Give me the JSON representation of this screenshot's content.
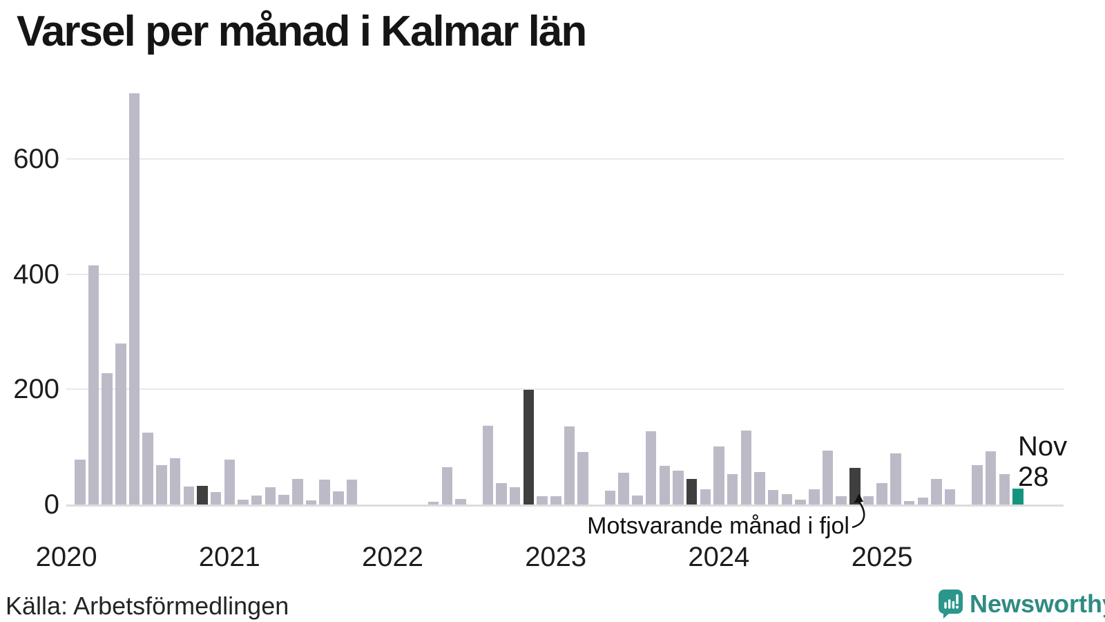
{
  "title": "Varsel per månad i Kalmar län",
  "footer": {
    "source": "Källa: Arbetsförmedlingen"
  },
  "brand": {
    "name": "Newsworthy",
    "text_color": "#2e8b83",
    "icon_color": "#2b968b"
  },
  "annotation": {
    "text": "Motsvarande månad i fjol",
    "target": "2024-11"
  },
  "highlight_label": {
    "month": "Nov",
    "value": "28"
  },
  "colors": {
    "bar": "#bdbac8",
    "bar_dark": "#3f3f3f",
    "bar_highlight": "#14947f",
    "gridline": "#e9e8ea",
    "axis_line": "#dcdcdf",
    "text": "#1d1d1d"
  },
  "chart_data": {
    "type": "bar",
    "title": "Varsel per månad i Kalmar län",
    "xlabel": "",
    "ylabel": "",
    "ylim": [
      0,
      745
    ],
    "yticks": [
      0,
      200,
      400,
      600
    ],
    "xticks": [
      "2020",
      "2021",
      "2022",
      "2023",
      "2024",
      "2025"
    ],
    "grid": "horizontal",
    "legend": "none",
    "categories": [
      "2020-02",
      "2020-03",
      "2020-04",
      "2020-05",
      "2020-06",
      "2020-07",
      "2020-08",
      "2020-09",
      "2020-10",
      "2020-11",
      "2020-12",
      "2021-01",
      "2021-02",
      "2021-03",
      "2021-04",
      "2021-05",
      "2021-06",
      "2021-07",
      "2021-08",
      "2021-09",
      "2021-10",
      "2021-11",
      "2021-12",
      "2022-01",
      "2022-02",
      "2022-03",
      "2022-04",
      "2022-05",
      "2022-06",
      "2022-07",
      "2022-08",
      "2022-09",
      "2022-10",
      "2022-11",
      "2022-12",
      "2023-01",
      "2023-02",
      "2023-03",
      "2023-04",
      "2023-05",
      "2023-06",
      "2023-07",
      "2023-08",
      "2023-09",
      "2023-10",
      "2023-11",
      "2023-12",
      "2024-01",
      "2024-02",
      "2024-03",
      "2024-04",
      "2024-05",
      "2024-06",
      "2024-07",
      "2024-08",
      "2024-09",
      "2024-10",
      "2024-11",
      "2024-12",
      "2025-01",
      "2025-02",
      "2025-03",
      "2025-04",
      "2025-05",
      "2025-06",
      "2025-07",
      "2025-08",
      "2025-09",
      "2025-10",
      "2025-11"
    ],
    "values": [
      78,
      415,
      228,
      280,
      715,
      125,
      69,
      80,
      31,
      33,
      22,
      78,
      8,
      16,
      30,
      17,
      44,
      7,
      43,
      23,
      43,
      0,
      0,
      0,
      0,
      0,
      5,
      65,
      10,
      0,
      137,
      37,
      30,
      200,
      15,
      15,
      136,
      91,
      0,
      24,
      55,
      16,
      127,
      67,
      59,
      45,
      26,
      101,
      53,
      128,
      57,
      25,
      18,
      9,
      26,
      94,
      15,
      64,
      15,
      37,
      89,
      6,
      12,
      45,
      26,
      0,
      69,
      93,
      53,
      28
    ],
    "dark_months": [
      "2020-11",
      "2021-11",
      "2022-11",
      "2023-11",
      "2024-11"
    ],
    "highlight_months": [
      "2025-11"
    ]
  }
}
